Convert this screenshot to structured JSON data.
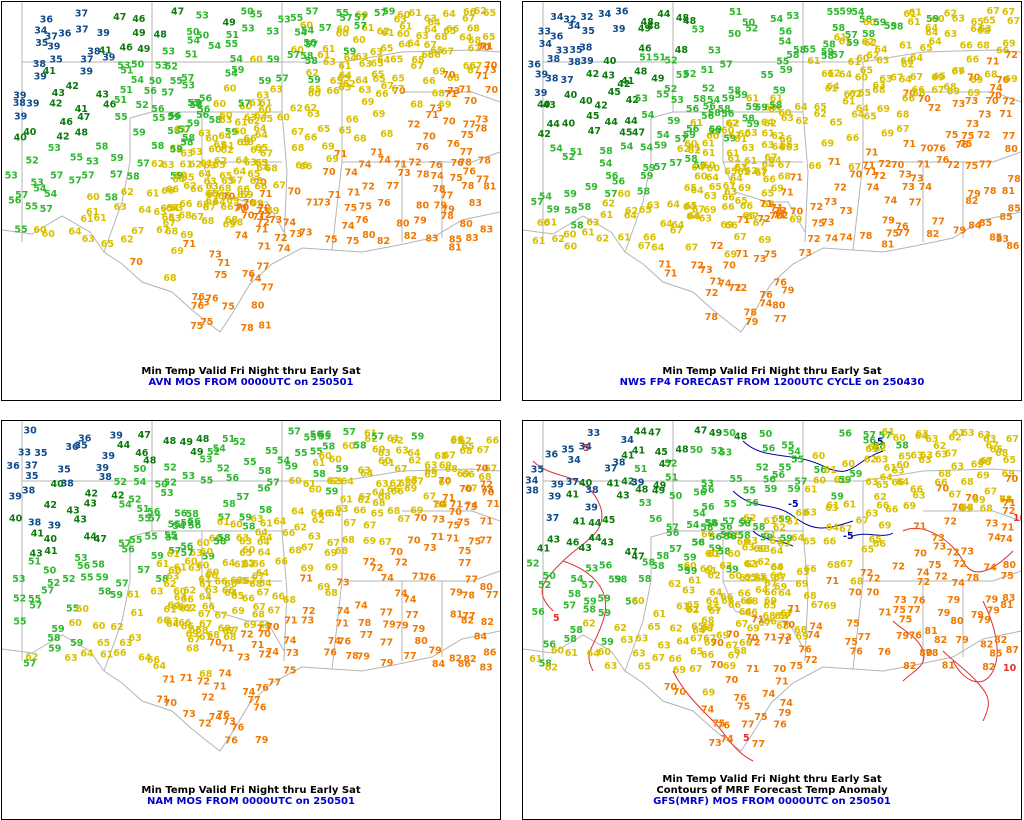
{
  "palette": {
    "cold_blue": "#0c4a8c",
    "cyan": "#22a5d8",
    "dark_green": "#0a7a0a",
    "green": "#2db82d",
    "yellow": "#d8c000",
    "orange": "#f07800",
    "boundary": "#b4b4b4",
    "caption_black": "#000000",
    "caption_blue": "#0000cc",
    "anomaly_warm": "#e03030",
    "anomaly_cold": "#0000a0"
  },
  "panels": [
    {
      "id": "avn",
      "title": "Min Temp Valid Fri Night thru Early Sat",
      "subtitle": "",
      "source": "AVN MOS FROM 0000UTC on 250501",
      "contours": false,
      "seed": 11
    },
    {
      "id": "nws",
      "title": "Min Temp Valid Fri Night thru Early Sat",
      "subtitle": "",
      "source": "NWS FP4 FORECAST FROM 1200UTC CYCLE on 250430",
      "contours": false,
      "seed": 23
    },
    {
      "id": "nam",
      "title": "Min Temp Valid Fri Night thru Early Sat",
      "subtitle": "",
      "source": "NAM MOS FROM 0000UTC on 250501",
      "contours": false,
      "seed": 37
    },
    {
      "id": "gfs",
      "title": "Min Temp Valid Fri Night thru Early Sat",
      "subtitle": "Contours of MRF Forecast Temp Anomaly",
      "source": "GFS(MRF) MOS FROM 0000UTC on 250501",
      "contours": true,
      "seed": 53,
      "anomaly_labels": [
        "-5",
        "5",
        "10",
        "-5",
        "5",
        "10",
        "-5",
        "5"
      ]
    }
  ]
}
